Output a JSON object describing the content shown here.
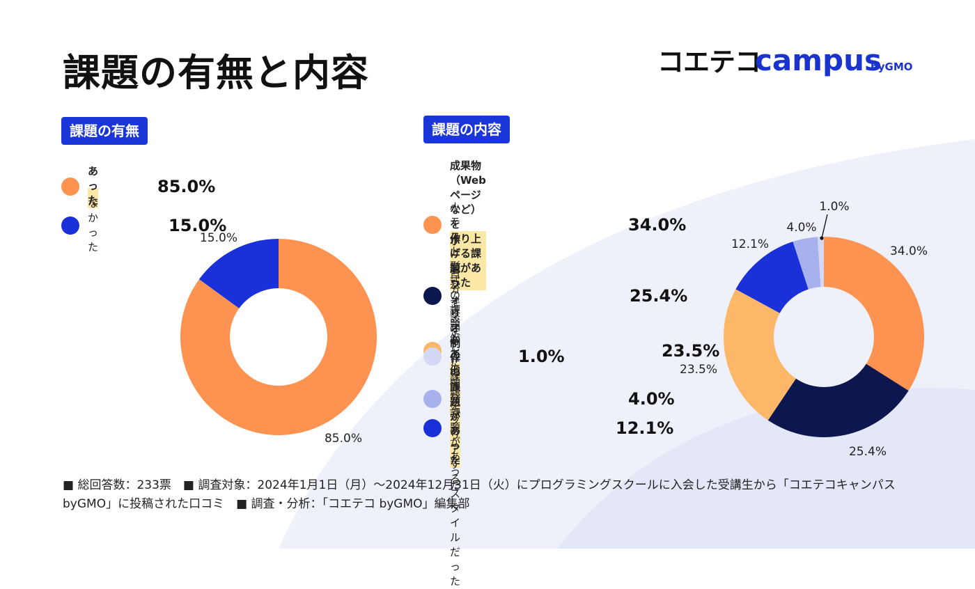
{
  "page": {
    "title": "課題の有無と内容",
    "logo": {
      "text_ja": "コエテコ",
      "text_en": "campus",
      "text_by": "byGMO"
    },
    "colors": {
      "background": "#ffffff",
      "wave": "#eef0fa",
      "wave_dark": "#e3e7f8",
      "badge": "#1a36d9",
      "highlight": "#fbe8a6"
    }
  },
  "chart_data": [
    {
      "type": "pie",
      "donut": true,
      "title": "課題の有無",
      "legend_position": "top-left",
      "labels": [
        "あった",
        "なかった"
      ],
      "values": [
        85.0,
        15.0
      ],
      "value_labels": [
        "85.0%",
        "15.0%"
      ],
      "legend_highlight": [
        true,
        false
      ],
      "colors": [
        "#fd9350",
        "#1a31d9"
      ]
    },
    {
      "type": "pie",
      "donut": true,
      "title": "課題の内容",
      "legend_position": "top-left",
      "labels": [
        [
          "成果物（Webページなど）を",
          "作り上げる課題があった"
        ],
        [
          "小テスト形式の課題があった"
        ],
        [
          "ポートフォリオ制作の課題があった"
        ],
        [
          "自分で設定した課題を",
          "クリアするスタイルだった"
        ],
        [
          "チームでの開発課題があった"
        ],
        [
          "その他"
        ]
      ],
      "values": [
        34.0,
        25.4,
        23.5,
        12.1,
        4.0,
        1.0
      ],
      "value_labels": [
        "34.0%",
        "25.4%",
        "23.5%",
        "12.1%",
        "4.0%",
        "1.0%"
      ],
      "legend_highlight": [
        true,
        false,
        true,
        false,
        false,
        false
      ],
      "colors": [
        "#fd9350",
        "#0c1750",
        "#fcb868",
        "#1a31d9",
        "#a7b1ee",
        "#d3d8f5"
      ]
    }
  ],
  "footnote": "■ 総回答数：233票　■ 調査対象：2024年1月1日（月）〜2024年12月31日（火）にプログラミングスクールに入会した受講生から「コエテコキャンパス byGMO」に投稿された口コミ　■ 調査・分析：「コエテコ byGMO」編集部"
}
